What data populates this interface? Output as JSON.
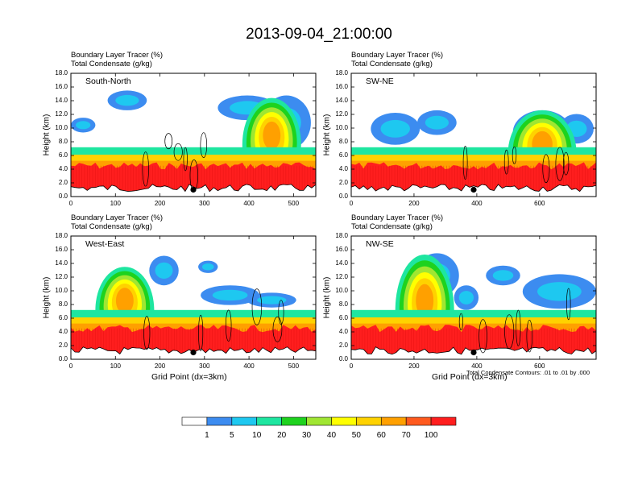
{
  "title": "2013-09-04_21:00:00",
  "subtitle_left": "Boundary Layer Tracer   (%)",
  "subtitle_right": "Total Condensate   (g/kg)",
  "y_axis_label": "Height (km)",
  "x_axis_label": "Grid Point (dx=3km)",
  "contour_note": "Total Condensate Contours: .01 to .01 by .000",
  "colors": {
    "levels": [
      "#ffffff",
      "#3c8cf0",
      "#1ec8f0",
      "#1ee6a0",
      "#1ed21e",
      "#a0e632",
      "#ffff00",
      "#ffd200",
      "#ffa000",
      "#ff5a1e",
      "#ff1e1e"
    ]
  },
  "chart_data": [
    {
      "type": "heatmap",
      "panel_label": "South-North",
      "title": "Boundary Layer Tracer   (%)",
      "subtitle": "Total Condensate   (g/kg)",
      "ylabel": "Height (km)",
      "xlabel": "",
      "xlim": [
        0,
        550
      ],
      "ylim": [
        0,
        18
      ],
      "x_ticks": [
        "0",
        "100",
        "200",
        "300",
        "400",
        "500"
      ],
      "y_ticks": [
        "0.0",
        "2.0",
        "4.0",
        "6.0",
        "8.0",
        "10.0",
        "12.0",
        "14.0",
        "16.0",
        "18.0"
      ],
      "marker": {
        "x": 275,
        "y": 1.0
      }
    },
    {
      "type": "heatmap",
      "panel_label": "SW-NE",
      "title": "Boundary Layer Tracer   (%)",
      "subtitle": "Total Condensate   (g/kg)",
      "ylabel": "Height (km)",
      "xlabel": "",
      "xlim": [
        0,
        780
      ],
      "ylim": [
        0,
        18
      ],
      "x_ticks": [
        "0",
        "200",
        "400",
        "600"
      ],
      "y_ticks": [
        "0.0",
        "2.0",
        "4.0",
        "6.0",
        "8.0",
        "10.0",
        "12.0",
        "14.0",
        "16.0",
        "18.0"
      ],
      "marker": {
        "x": 390,
        "y": 1.0
      }
    },
    {
      "type": "heatmap",
      "panel_label": "West-East",
      "title": "Boundary Layer Tracer   (%)",
      "subtitle": "Total Condensate   (g/kg)",
      "ylabel": "Height (km)",
      "xlabel": "Grid Point (dx=3km)",
      "xlim": [
        0,
        550
      ],
      "ylim": [
        0,
        18
      ],
      "x_ticks": [
        "0",
        "100",
        "200",
        "300",
        "400",
        "500"
      ],
      "y_ticks": [
        "0.0",
        "2.0",
        "4.0",
        "6.0",
        "8.0",
        "10.0",
        "12.0",
        "14.0",
        "16.0",
        "18.0"
      ],
      "marker": {
        "x": 275,
        "y": 1.0
      }
    },
    {
      "type": "heatmap",
      "panel_label": "NW-SE",
      "title": "Boundary Layer Tracer   (%)",
      "subtitle": "Total Condensate   (g/kg)",
      "ylabel": "Height (km)",
      "xlabel": "Grid Point (dx=3km)",
      "xlim": [
        0,
        780
      ],
      "ylim": [
        0,
        18
      ],
      "x_ticks": [
        "0",
        "200",
        "400",
        "600"
      ],
      "y_ticks": [
        "0.0",
        "2.0",
        "4.0",
        "6.0",
        "8.0",
        "10.0",
        "12.0",
        "14.0",
        "16.0",
        "18.0"
      ],
      "marker": {
        "x": 390,
        "y": 1.0
      }
    },
    {
      "type": "colorbar",
      "labels": [
        "1",
        "5",
        "10",
        "20",
        "30",
        "40",
        "50",
        "60",
        "70",
        "100"
      ]
    }
  ]
}
